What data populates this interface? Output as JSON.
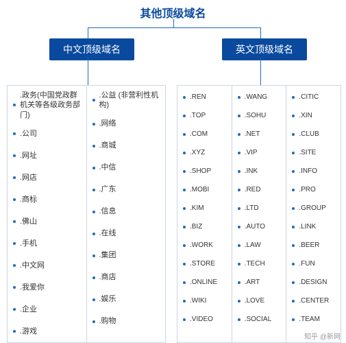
{
  "structure": {
    "type": "tree",
    "root_color": "#0a4a9e",
    "connector_color": "#1e6bb8",
    "border_color": "#c9d6e8",
    "bullet_color": "#1e6bb8",
    "background": "#ffffff",
    "root_fontsize": 16,
    "branch_fontsize": 14,
    "cell_fontsize_cn": 11,
    "cell_fontsize_en": 10
  },
  "root": {
    "title": "其他顶级域名"
  },
  "branches": {
    "left": {
      "title": "中文顶级域名"
    },
    "right": {
      "title": "英文顶级域名"
    }
  },
  "left_table": {
    "columns": [
      [
        " .政务(中国党政群机关等各级政务部门)",
        ".公司",
        ".网址",
        ".网店",
        ".商标",
        ".佛山",
        ".手机",
        ".中文网",
        ".我爱你",
        ".企业",
        ".游戏"
      ],
      [
        ".公益 (非营利性机构)",
        ".网络",
        ".商城",
        ".中信",
        ".广东",
        ".信息",
        ".在线",
        ".集团",
        ".商店",
        ".娱乐",
        ".购物"
      ]
    ]
  },
  "right_table": {
    "columns": [
      [
        ".REN",
        ".TOP",
        ".COM",
        ".XYZ",
        ".SHOP",
        ".MOBI",
        ".KIM",
        ".BIZ",
        ".WORK",
        ".STORE",
        ".ONLINE",
        ".WIKI",
        ".VIDEO"
      ],
      [
        ".WANG",
        ".SOHU",
        ".NET",
        ".VIP",
        ".INK",
        ".RED",
        ".LTD",
        ".AUTO",
        ".LAW",
        ".TECH",
        ".ART",
        ".LOVE",
        ".SOCIAL"
      ],
      [
        ".CITIC",
        ".XIN",
        ".CLUB",
        ".SITE",
        ".INFO",
        ".PRO",
        ".GROUP",
        ".LINK",
        ".BEER",
        ".FUN",
        ".DESIGN",
        ".CENTER",
        ".TEAM"
      ]
    ]
  },
  "watermark": "知乎 @新网"
}
